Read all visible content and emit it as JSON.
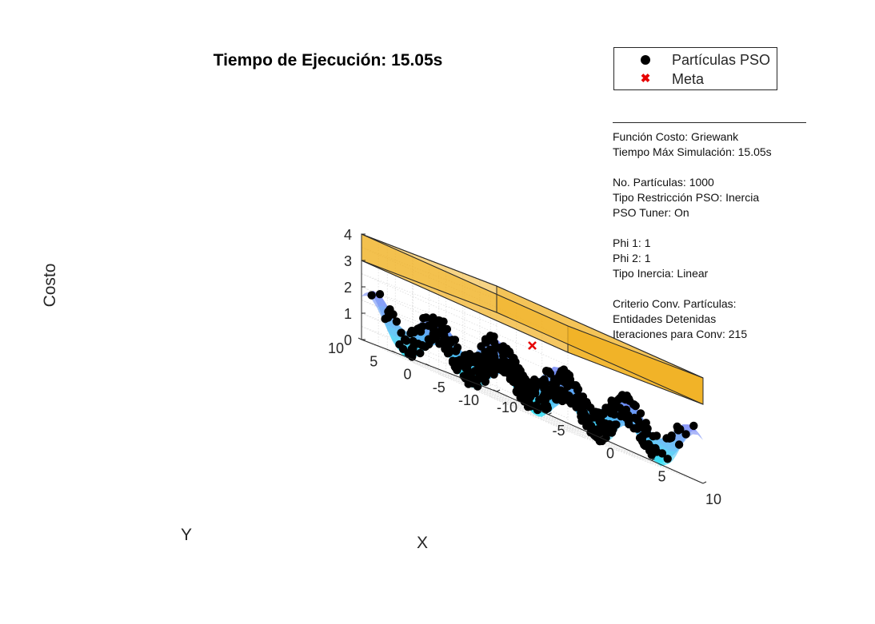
{
  "title": "Tiempo de Ejecución: 15.05s",
  "legend": {
    "items": [
      {
        "label": "Partículas PSO",
        "marker": "filled-circle",
        "color": "#000000"
      },
      {
        "label": "Meta",
        "marker": "x",
        "color": "#e60000"
      }
    ]
  },
  "info_lines": [
    "Función Costo: Griewank",
    "Tiempo Máx Simulación: 15.05s",
    "",
    "No. Partículas: 1000",
    "Tipo Restricción PSO: Inercia",
    "PSO Tuner: On",
    "",
    "Phi 1: 1",
    "Phi 2: 1",
    "Tipo Inercia: Linear",
    "",
    "Criterio Conv. Partículas:",
    "Entidades Detenidas",
    "Iteraciones para Conv: 215"
  ],
  "chart_data": {
    "type": "surface3d",
    "function": "Griewank",
    "xlabel": "X",
    "ylabel": "Y",
    "zlabel": "Costo",
    "xlim": [
      -10,
      10
    ],
    "ylim": [
      -10,
      10
    ],
    "zlim": [
      0,
      4
    ],
    "xticks": [
      "-10",
      "-5",
      "0",
      "5",
      "10"
    ],
    "yticks": [
      "-10",
      "-5",
      "0",
      "5",
      "10"
    ],
    "zticks": [
      "0",
      "1",
      "2",
      "3",
      "4"
    ],
    "grid": true,
    "legend_position": "outside-top-right",
    "colormap": [
      "#2ee8f5",
      "#7a7cf5"
    ],
    "surface_alpha": 0.6,
    "restriction_box": {
      "x": [
        -10,
        10
      ],
      "y": [
        -10,
        10
      ],
      "z": [
        3,
        4
      ],
      "color": "#f0b020"
    },
    "goal": {
      "x": 0,
      "y": 0,
      "z": 2.5,
      "color": "#e60000"
    },
    "particles": {
      "count": 1000,
      "color": "#000000"
    }
  }
}
